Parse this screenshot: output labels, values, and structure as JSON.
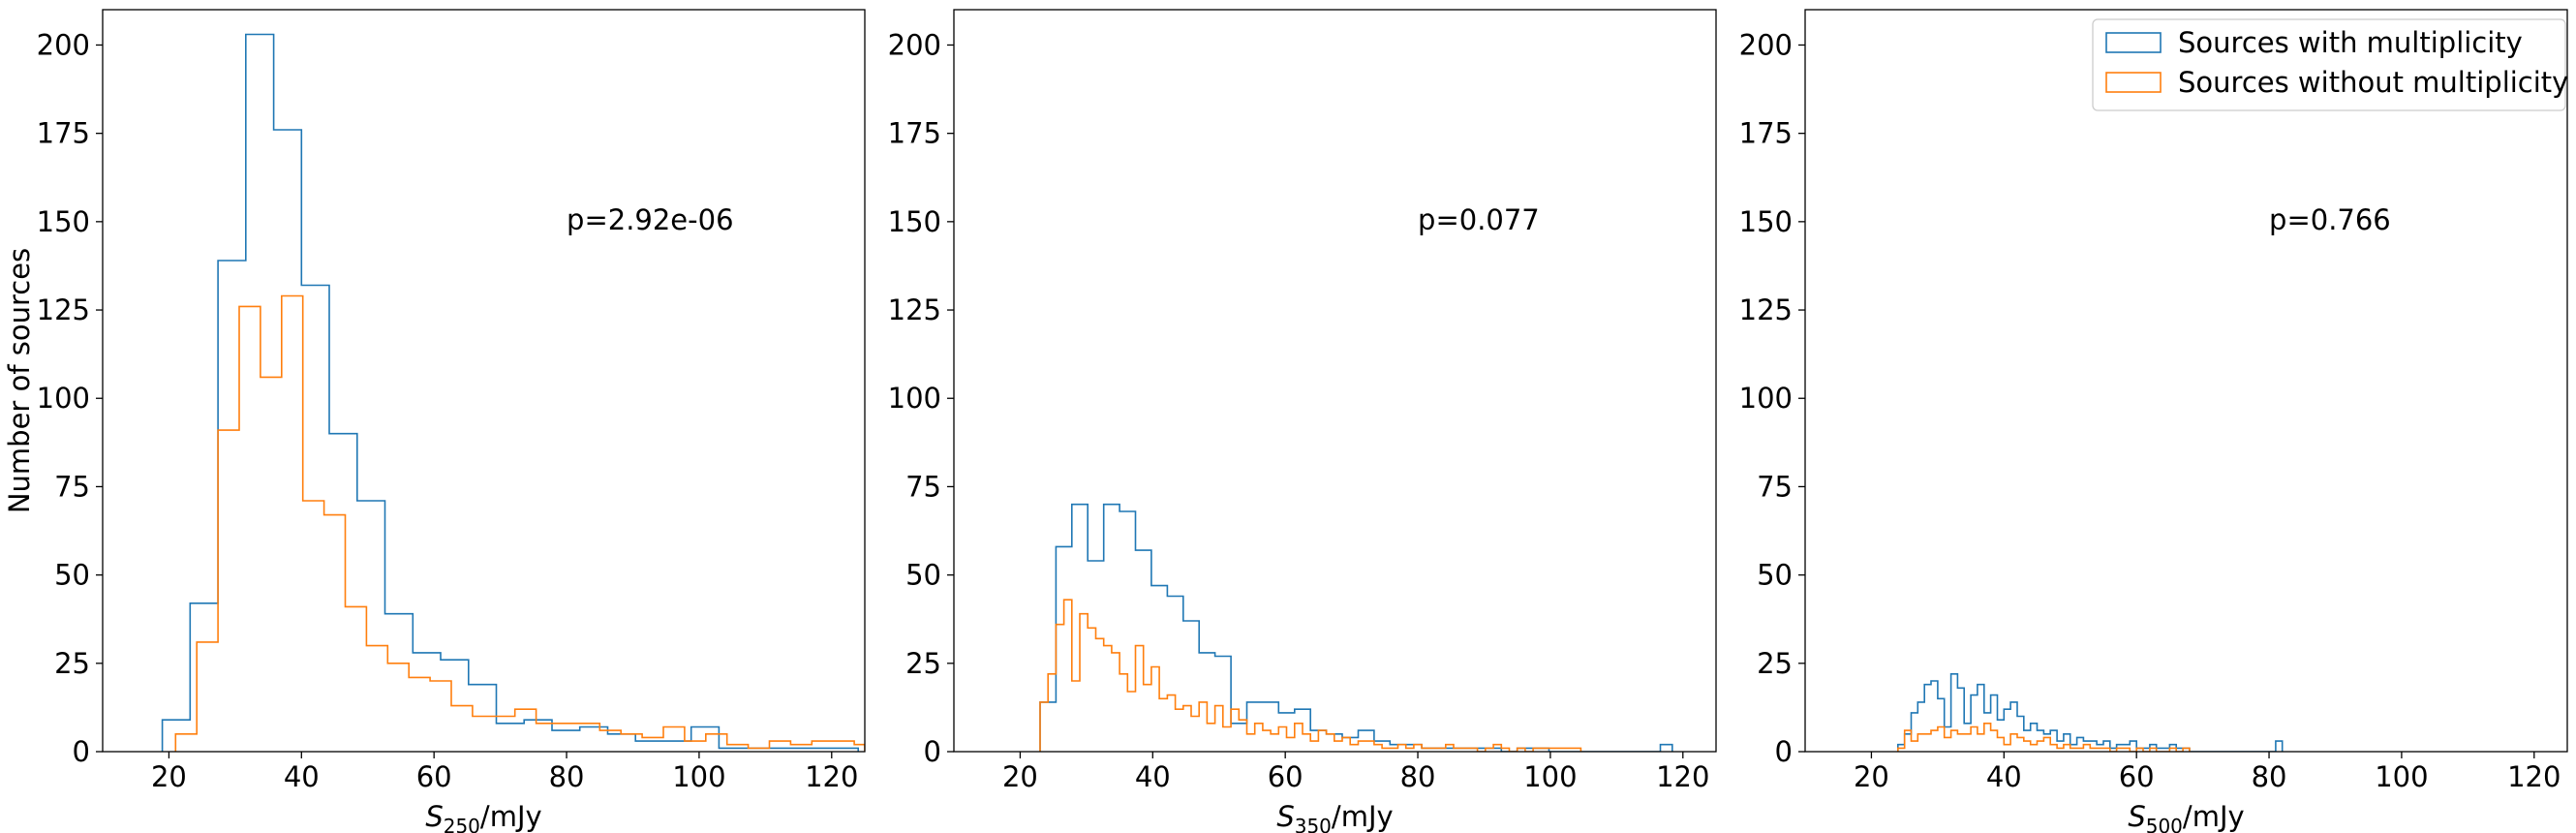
{
  "colors": {
    "with_multiplicity": "#1f77b4",
    "without_multiplicity": "#ff7f0e"
  },
  "legend": {
    "placement": "top-right",
    "entries": [
      "Sources with multiplicity",
      "Sources without multiplicity"
    ]
  },
  "chart_data": [
    {
      "type": "histogram",
      "xlabel_symbol": "S",
      "xlabel_sub": "250",
      "xlabel_unit": "/mJy",
      "ylabel": "Number of sources",
      "xlim": [
        10,
        125
      ],
      "ylim": [
        0,
        210
      ],
      "xticks": [
        20,
        40,
        60,
        80,
        100,
        120
      ],
      "yticks": [
        0,
        25,
        50,
        75,
        100,
        125,
        150,
        175,
        200
      ],
      "annotation": {
        "text": "p=2.92e-06",
        "x": 80,
        "y": 150
      },
      "series": [
        {
          "name": "Sources with multiplicity",
          "edges": [
            19,
            23.2,
            27.4,
            31.6,
            35.8,
            40,
            44.2,
            48.4,
            52.6,
            56.8,
            61,
            65.2,
            69.4,
            73.6,
            77.8,
            82,
            86.2,
            90.4,
            94.6,
            98.8,
            103,
            107.2,
            111.4,
            115.6,
            119.8,
            124
          ],
          "counts": [
            9,
            42,
            139,
            203,
            176,
            132,
            90,
            71,
            39,
            28,
            26,
            19,
            8,
            9,
            6,
            7,
            5,
            3,
            3,
            7,
            1,
            1,
            1,
            1,
            1
          ]
        },
        {
          "name": "Sources without multiplicity",
          "edges": [
            21,
            24.2,
            27.4,
            30.6,
            33.8,
            37,
            40.2,
            43.4,
            46.6,
            49.8,
            53,
            56.2,
            59.4,
            62.6,
            65.8,
            69,
            72.2,
            75.4,
            78.6,
            81.8,
            85,
            88.2,
            91.4,
            94.6,
            97.8,
            101,
            104.2,
            107.4,
            110.6,
            113.8,
            117,
            120.2,
            123.4,
            125
          ],
          "counts": [
            5,
            31,
            91,
            126,
            106,
            129,
            71,
            67,
            41,
            30,
            25,
            21,
            20,
            13,
            10,
            10,
            12,
            8,
            8,
            8,
            6,
            5,
            4,
            7,
            3,
            5,
            2,
            1,
            3,
            2,
            3,
            3,
            2
          ]
        }
      ]
    },
    {
      "type": "histogram",
      "xlabel_symbol": "S",
      "xlabel_sub": "350",
      "xlabel_unit": "/mJy",
      "ylabel": "",
      "xlim": [
        10,
        125
      ],
      "ylim": [
        0,
        210
      ],
      "xticks": [
        20,
        40,
        60,
        80,
        100,
        120
      ],
      "yticks": [
        0,
        25,
        50,
        75,
        100,
        125,
        150,
        175,
        200
      ],
      "annotation": {
        "text": "p=0.077",
        "x": 80,
        "y": 150
      },
      "series": [
        {
          "name": "Sources with multiplicity",
          "edges": [
            23,
            25.4,
            27.8,
            30.2,
            32.6,
            35,
            37.4,
            39.8,
            42.2,
            44.6,
            47,
            49.4,
            51.8,
            54.2,
            56.6,
            59,
            61.4,
            63.8,
            66.2,
            68.6,
            71,
            73.4,
            75.8,
            78.2,
            80.6,
            83,
            85.4,
            87.8,
            90.2,
            92.6,
            95,
            97.4,
            99.8,
            102.2,
            104.6,
            107,
            109.4,
            111.8,
            114.2,
            116.6,
            118.4
          ],
          "counts": [
            14,
            58,
            70,
            54,
            70,
            68,
            57,
            47,
            44,
            37,
            28,
            27,
            8,
            14,
            14,
            11,
            12,
            6,
            5,
            4,
            6,
            3,
            2,
            2,
            1,
            1,
            1,
            1,
            1,
            0,
            1,
            1,
            0,
            0,
            0,
            0,
            0,
            0,
            0,
            2
          ]
        },
        {
          "name": "Sources without multiplicity",
          "edges": [
            23,
            24.2,
            25.4,
            26.6,
            27.8,
            29,
            30.2,
            31.4,
            32.6,
            33.8,
            35,
            36.2,
            37.4,
            38.6,
            39.8,
            41,
            42.2,
            43.4,
            44.6,
            45.8,
            47,
            48.2,
            49.4,
            50.6,
            51.8,
            53,
            54.2,
            55.4,
            56.6,
            57.8,
            59,
            60.2,
            61.4,
            62.6,
            63.8,
            65,
            66.2,
            67.4,
            68.6,
            69.8,
            71,
            72.2,
            73.4,
            74.6,
            75.8,
            77,
            78.2,
            79.4,
            80.6,
            81.8,
            83,
            84.2,
            85.4,
            86.6,
            87.8,
            89,
            90.2,
            91.4,
            92.6,
            93.8,
            95,
            96.2,
            97.4,
            98.6,
            99.8,
            101,
            102.2,
            103.4,
            104.6
          ],
          "counts": [
            14,
            22,
            36,
            43,
            20,
            39,
            35,
            32,
            30,
            28,
            22,
            17,
            30,
            19,
            24,
            15,
            16,
            12,
            13,
            10,
            14,
            8,
            13,
            7,
            12,
            9,
            5,
            8,
            6,
            5,
            7,
            4,
            8,
            5,
            3,
            6,
            5,
            3,
            4,
            2,
            3,
            3,
            2,
            1,
            1,
            2,
            1,
            2,
            1,
            1,
            1,
            2,
            1,
            1,
            1,
            0,
            1,
            2,
            1,
            0,
            1,
            0,
            1,
            1,
            1,
            1,
            1,
            1
          ]
        }
      ]
    },
    {
      "type": "histogram",
      "xlabel_symbol": "S",
      "xlabel_sub": "500",
      "xlabel_unit": "/mJy",
      "ylabel": "",
      "xlim": [
        10,
        125
      ],
      "ylim": [
        0,
        210
      ],
      "xticks": [
        20,
        40,
        60,
        80,
        100,
        120
      ],
      "yticks": [
        0,
        25,
        50,
        75,
        100,
        125,
        150,
        175,
        200
      ],
      "annotation": {
        "text": "p=0.766",
        "x": 80,
        "y": 150
      },
      "series": [
        {
          "name": "Sources with multiplicity",
          "edges": [
            24,
            25,
            26,
            27,
            28,
            29,
            30,
            31,
            32,
            33,
            34,
            35,
            36,
            37,
            38,
            39,
            40,
            41,
            42,
            43,
            44,
            45,
            46,
            47,
            48,
            49,
            50,
            51,
            52,
            53,
            54,
            55,
            56,
            57,
            58,
            59,
            60,
            61,
            62,
            63,
            64,
            65,
            66,
            67,
            68,
            69,
            70,
            71,
            72,
            73,
            74,
            75,
            76,
            77,
            78,
            79,
            80,
            81,
            82
          ],
          "counts": [
            2,
            5,
            11,
            14,
            19,
            20,
            15,
            7,
            22,
            18,
            8,
            16,
            19,
            11,
            16,
            9,
            12,
            14,
            10,
            6,
            8,
            6,
            5,
            6,
            3,
            5,
            2,
            4,
            3,
            3,
            2,
            3,
            1,
            2,
            2,
            3,
            1,
            1,
            2,
            1,
            1,
            2,
            1,
            1,
            0,
            0,
            0,
            0,
            0,
            0,
            0,
            0,
            0,
            0,
            0,
            0,
            0,
            3
          ]
        },
        {
          "name": "Sources without multiplicity",
          "edges": [
            24,
            25,
            26,
            27,
            28,
            29,
            30,
            31,
            32,
            33,
            34,
            35,
            36,
            37,
            38,
            39,
            40,
            41,
            42,
            43,
            44,
            45,
            46,
            47,
            48,
            49,
            50,
            51,
            52,
            53,
            54,
            55,
            56,
            57,
            58,
            59,
            60,
            61,
            62,
            63,
            64,
            65,
            66,
            67,
            68
          ],
          "counts": [
            1,
            6,
            3,
            5,
            5,
            6,
            7,
            4,
            6,
            5,
            5,
            7,
            5,
            8,
            6,
            4,
            2,
            5,
            4,
            3,
            2,
            3,
            4,
            2,
            1,
            2,
            1,
            1,
            2,
            1,
            1,
            1,
            0,
            1,
            1,
            0,
            1,
            0,
            1,
            0,
            0,
            1,
            0,
            1
          ]
        }
      ]
    }
  ]
}
